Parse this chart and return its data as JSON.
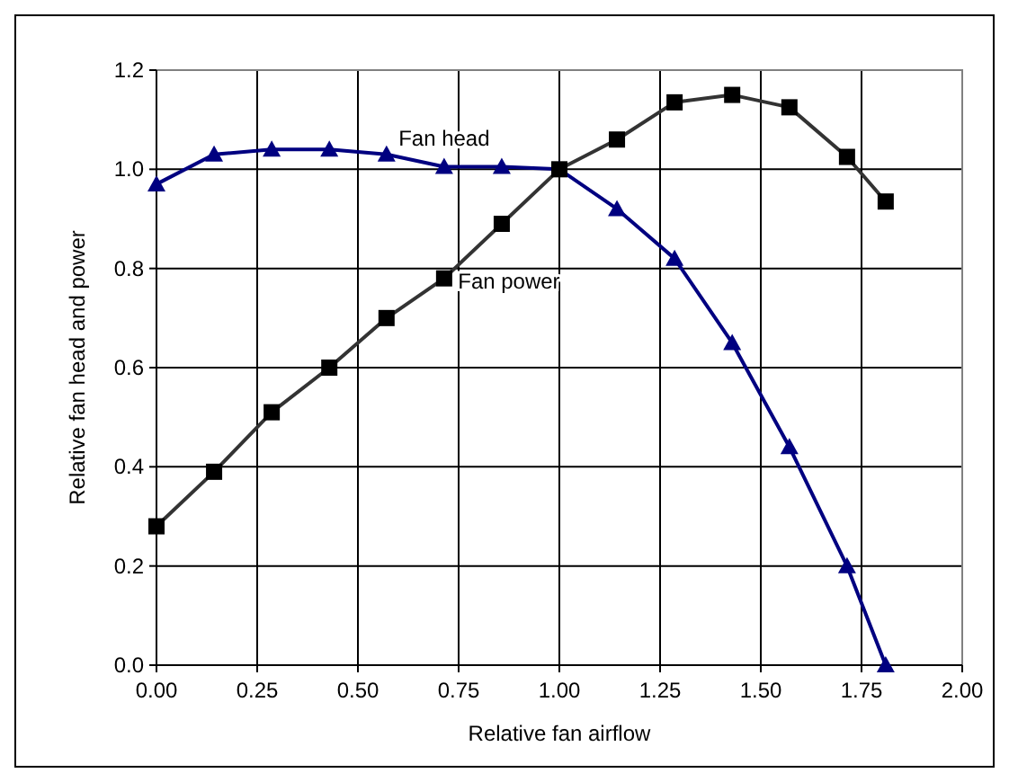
{
  "chart_data": {
    "type": "line",
    "xlabel": "Relative fan airflow",
    "ylabel": "Relative fan head and power",
    "xlim": [
      0,
      2
    ],
    "xticks": [
      {
        "value": 0,
        "label": "0.00"
      },
      {
        "value": 0.25,
        "label": "0.25"
      },
      {
        "value": 0.5,
        "label": "0.50"
      },
      {
        "value": 0.75,
        "label": "0.75"
      },
      {
        "value": 1,
        "label": "1.00"
      },
      {
        "value": 1.25,
        "label": "1.25"
      },
      {
        "value": 1.5,
        "label": "1.50"
      },
      {
        "value": 1.75,
        "label": "1.75"
      },
      {
        "value": 2,
        "label": "2.00"
      }
    ],
    "ylim": [
      0,
      1.2
    ],
    "yticks": [
      {
        "value": 0,
        "label": "0.0"
      },
      {
        "value": 0.2,
        "label": "0.2"
      },
      {
        "value": 0.4,
        "label": "0.4"
      },
      {
        "value": 0.6,
        "label": "0.6"
      },
      {
        "value": 0.8,
        "label": "0.8"
      },
      {
        "value": 1,
        "label": "1.0"
      },
      {
        "value": 1.2,
        "label": "1.2"
      }
    ],
    "grid": true,
    "line_style": "solid",
    "series": [
      {
        "name": "Fan head",
        "color": "#000080",
        "marker": "triangle",
        "x": [
          0,
          0.143,
          0.286,
          0.429,
          0.571,
          0.714,
          0.857,
          1.0,
          1.143,
          1.286,
          1.429,
          1.571,
          1.714,
          1.81
        ],
        "values": [
          0.97,
          1.03,
          1.04,
          1.04,
          1.03,
          1.005,
          1.005,
          1.0,
          0.92,
          0.82,
          0.65,
          0.44,
          0.2,
          0.0
        ]
      },
      {
        "name": "Fan power",
        "color": "#333333",
        "marker": "square",
        "x": [
          0,
          0.143,
          0.286,
          0.429,
          0.571,
          0.714,
          0.857,
          1.0,
          1.143,
          1.286,
          1.429,
          1.571,
          1.714,
          1.81
        ],
        "values": [
          0.28,
          0.39,
          0.51,
          0.6,
          0.7,
          0.78,
          0.89,
          1.0,
          1.06,
          1.135,
          1.15,
          1.125,
          1.025,
          0.935
        ]
      }
    ]
  }
}
